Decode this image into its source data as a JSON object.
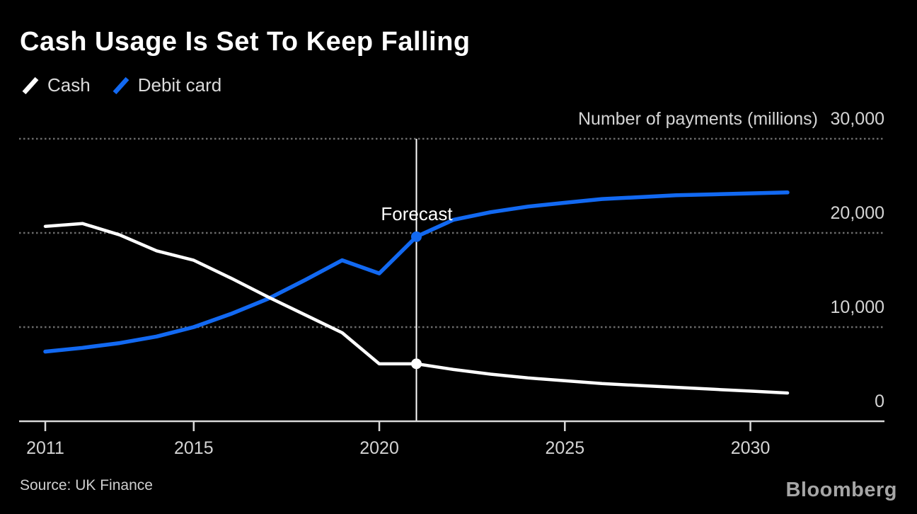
{
  "source": "Source: UK Finance",
  "brand": "Bloomberg",
  "colors": {
    "background": "#000000",
    "grid": "#6b6b6b",
    "axis": "#d9d9d9",
    "tick_text": "#d4d4d4",
    "title_text": "#ffffff",
    "forecast_line": "#ffffff",
    "cash_line": "#ffffff",
    "debit_line": "#1269f2"
  },
  "chart_data": {
    "type": "line",
    "title": "Cash Usage Is Set To Keep Falling",
    "unit_label": "Number of payments (millions)",
    "xlabel": "",
    "ylabel": "Number of payments (millions)",
    "x": [
      2011,
      2012,
      2013,
      2014,
      2015,
      2016,
      2017,
      2018,
      2019,
      2020,
      2021,
      2022,
      2023,
      2024,
      2025,
      2026,
      2027,
      2028,
      2029,
      2030,
      2031
    ],
    "series": [
      {
        "name": "Cash",
        "color": "#ffffff",
        "line_width": 4.5,
        "values": [
          20700,
          21000,
          19800,
          18100,
          17100,
          15200,
          13200,
          11300,
          9400,
          6100,
          6100,
          5500,
          5000,
          4600,
          4300,
          4000,
          3800,
          3600,
          3400,
          3200,
          3000
        ]
      },
      {
        "name": "Debit card",
        "color": "#1269f2",
        "line_width": 5.5,
        "values": [
          7400,
          7800,
          8300,
          9000,
          10000,
          11400,
          13000,
          15000,
          17100,
          15700,
          19600,
          21400,
          22200,
          22800,
          23200,
          23600,
          23800,
          24000,
          24100,
          24200,
          24300
        ]
      }
    ],
    "forecast": {
      "label": "Forecast",
      "start_year": 2021,
      "marker_radius": 7.5
    },
    "x_ticks": [
      {
        "year": 2011,
        "label": "2011"
      },
      {
        "year": 2015,
        "label": "2015"
      },
      {
        "year": 2020,
        "label": "2020"
      },
      {
        "year": 2025,
        "label": "2025"
      },
      {
        "year": 2030,
        "label": "2030"
      }
    ],
    "y_ticks": [
      {
        "value": 30000,
        "label": "30,000"
      },
      {
        "value": 20000,
        "label": "20,000"
      },
      {
        "value": 10000,
        "label": "10,000"
      },
      {
        "value": 0,
        "label": "0"
      }
    ],
    "ylim": [
      0,
      30000
    ],
    "xlim": [
      2011,
      2031
    ],
    "grid": "horizontal-dotted",
    "legend_position": "top-left",
    "y_axis_side": "right"
  }
}
